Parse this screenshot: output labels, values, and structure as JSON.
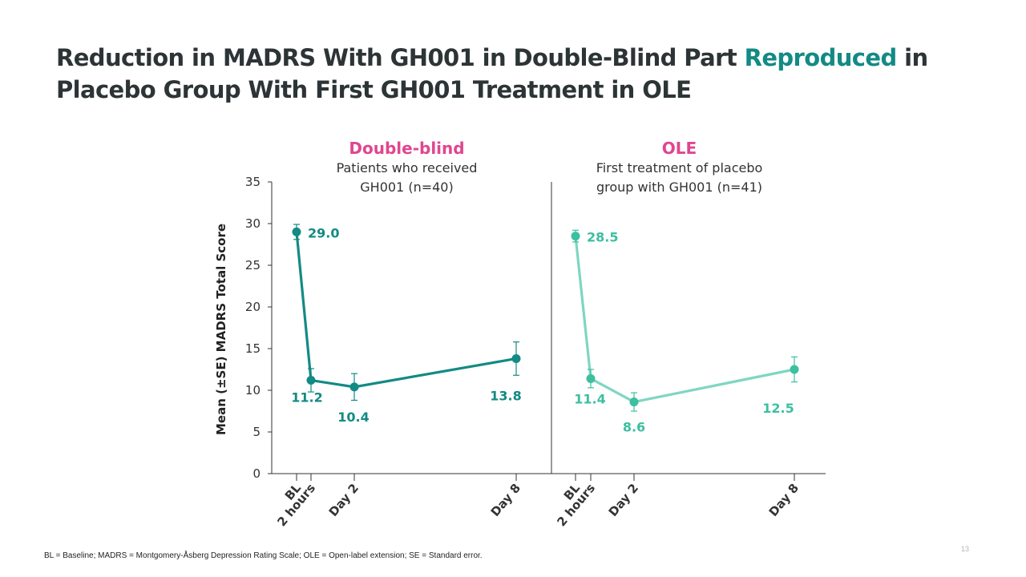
{
  "slide": {
    "title_part1": "Reduction in MADRS With GH001 in Double-Blind Part ",
    "title_accent": "Reproduced",
    "title_part2": " in Placebo Group With First GH001 Treatment in OLE",
    "footnote": "BL = Baseline; MADRS = Montgomery-Åsberg Depression Rating Scale; OLE = Open-label extension; SE = Standard error.",
    "page_number": "13",
    "colors": {
      "title": "#2d3436",
      "accent": "#138a84",
      "panel_title": "#e0468f"
    }
  },
  "panels": [
    {
      "title": "Double-blind",
      "subtitle_line1": "Patients who received",
      "subtitle_line2": "GH001 (n=40)"
    },
    {
      "title": "OLE",
      "subtitle_line1": "First treatment of placebo",
      "subtitle_line2": "group with GH001 (n=41)"
    }
  ],
  "chart_data": {
    "type": "line",
    "title": "Reduction in MADRS With GH001 in Double-Blind Part Reproduced in Placebo Group With First GH001 Treatment in OLE",
    "ylabel": "Mean (±SE) MADRS Total Score",
    "xlabel": "",
    "ylim": [
      0,
      35
    ],
    "yticks": [
      0,
      5,
      10,
      15,
      20,
      25,
      30,
      35
    ],
    "grid": false,
    "categories": [
      "BL",
      "2 hours",
      "Day 2",
      "Day 8"
    ],
    "series": [
      {
        "name": "Double-blind: Patients who received GH001 (n=40)",
        "color": "#138a84",
        "values": [
          29.0,
          11.2,
          10.4,
          13.8
        ],
        "se": [
          0.9,
          1.4,
          1.6,
          2.0
        ],
        "labels": [
          "29.0",
          "11.2",
          "10.4",
          "13.8"
        ]
      },
      {
        "name": "OLE: First treatment of placebo group with GH001 (n=41)",
        "color": "#3dbfa0",
        "line_color": "#7fd6c2",
        "values": [
          28.5,
          11.4,
          8.6,
          12.5
        ],
        "se": [
          0.7,
          1.1,
          1.1,
          1.5
        ],
        "labels": [
          "28.5",
          "11.4",
          "8.6",
          "12.5"
        ]
      }
    ]
  }
}
